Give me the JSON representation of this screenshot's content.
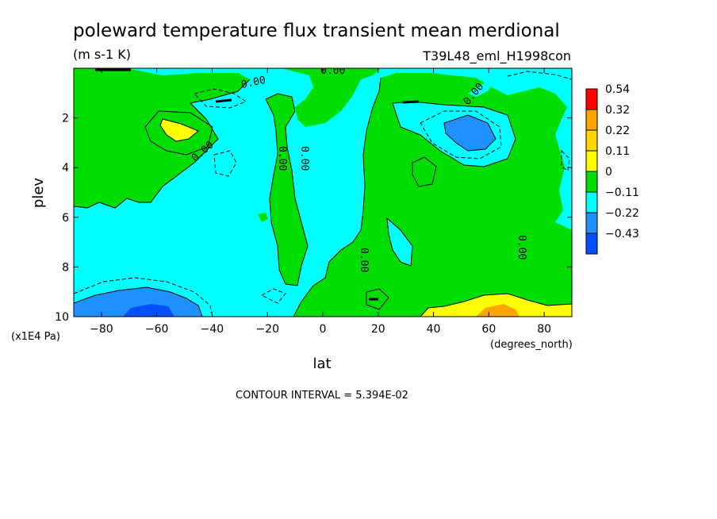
{
  "chart_data": {
    "type": "heatmap",
    "title": "poleward temperature flux transient mean merdional",
    "units": "(m s-1 K)",
    "run_label": "T39L48_eml_H1998con",
    "xlabel": "lat",
    "x_units": "(degrees_north)",
    "ylabel": "plev",
    "y_units": "(x1E4 Pa)",
    "xlim": [
      -90,
      90
    ],
    "ylim": [
      10,
      0
    ],
    "x_ticks": [
      -80,
      -60,
      -40,
      -20,
      0,
      20,
      40,
      60,
      80
    ],
    "x_tick_labels": [
      "−80",
      "−60",
      "−40",
      "−20",
      "0",
      "20",
      "40",
      "60",
      "80"
    ],
    "y_ticks": [
      2,
      4,
      6,
      8,
      10
    ],
    "y_tick_labels": [
      "2",
      "4",
      "6",
      "8",
      "10"
    ],
    "contour_interval_text": "CONTOUR INTERVAL = 5.394E-02",
    "contour_labels": [
      "0.00",
      "0.00",
      "0.00",
      "0.00",
      "0.00",
      "0.00",
      "0.00",
      "0.00"
    ],
    "colorbar": {
      "levels": [
        "0.54",
        "0.32",
        "0.22",
        "0.11",
        "0",
        "−0.11",
        "−0.22",
        "−0.43"
      ],
      "colors": [
        "#ff0000",
        "#ffa500",
        "#ffd700",
        "#ffff00",
        "#00dd00",
        "#00ffff",
        "#1e90ff",
        "#0050ff"
      ]
    },
    "fill_colors": {
      "neg_small": "#00ffff",
      "pos_small": "#00dd00",
      "pos_mid": "#ffff00",
      "pos_high": "#ffa500",
      "neg_mid": "#1e90ff",
      "neg_high": "#0050ff"
    },
    "features": [
      {
        "name": "pos-sh-upper",
        "lat": [
          -87,
          -40
        ],
        "plev": [
          0.5,
          5.5
        ],
        "level": "pos_small"
      },
      {
        "name": "pos-sh-max",
        "lat": [
          -59,
          -50
        ],
        "plev": [
          1.8,
          2.8
        ],
        "level": "pos_mid"
      },
      {
        "name": "pos-equatorial-column",
        "lat": [
          -18,
          -3
        ],
        "plev": [
          1,
          8.5
        ],
        "level": "pos_small"
      },
      {
        "name": "pos-nh-upper-tropo",
        "lat": [
          5,
          28
        ],
        "plev": [
          0,
          2.5
        ],
        "level": "pos_small"
      },
      {
        "name": "pos-nh-broad",
        "lat": [
          15,
          88
        ],
        "plev": [
          1,
          10
        ],
        "level": "pos_small"
      },
      {
        "name": "neg-nh-upper",
        "lat": [
          36,
          62
        ],
        "plev": [
          1.5,
          4
        ],
        "level": "neg_mid"
      },
      {
        "name": "neg-sh-surface",
        "lat": [
          -75,
          -45
        ],
        "plev": [
          8.5,
          10
        ],
        "level": "neg_mid"
      },
      {
        "name": "neg-sh-surface-core",
        "lat": [
          -66,
          -52
        ],
        "plev": [
          9.5,
          10
        ],
        "level": "neg_high"
      },
      {
        "name": "pos-nh-surface",
        "lat": [
          35,
          75
        ],
        "plev": [
          9.3,
          10
        ],
        "level": "pos_mid"
      },
      {
        "name": "pos-nh-surface-core",
        "lat": [
          55,
          65
        ],
        "plev": [
          9.7,
          10
        ],
        "level": "pos_high"
      }
    ]
  }
}
